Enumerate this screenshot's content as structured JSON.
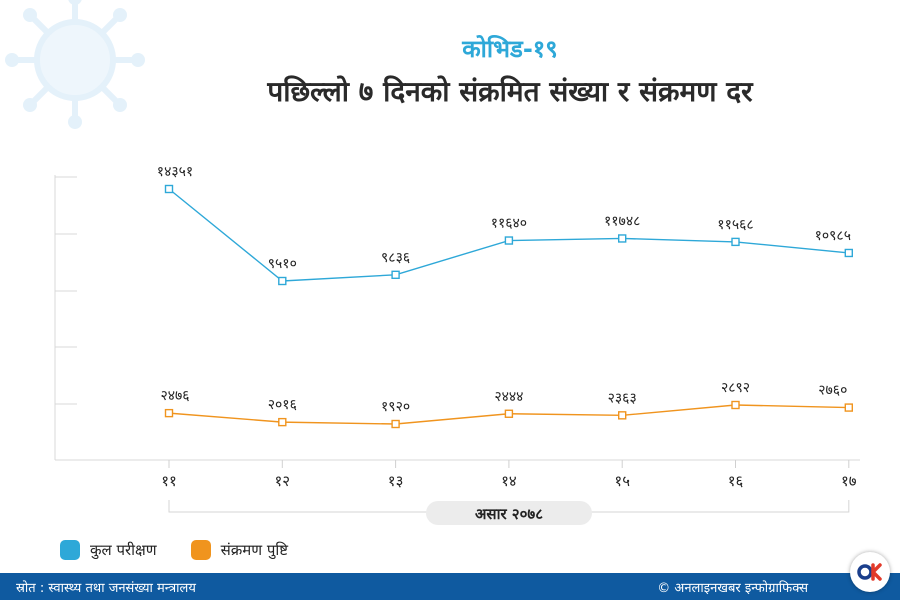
{
  "header": {
    "kicker": "कोभिड-१९",
    "title": "पछिल्लो ७ दिनको संक्रमित संख्या र संक्रमण दर"
  },
  "chart_data": {
    "type": "line",
    "categories": [
      "११",
      "१२",
      "१३",
      "१४",
      "१५",
      "१६",
      "१७"
    ],
    "xlabel": "असार २०७८",
    "ylabel": "",
    "grid": false,
    "legend_position": "bottom-left",
    "series": [
      {
        "name": "कुल परीक्षण",
        "color": "#2ea8d8",
        "values": [
          14351,
          9510,
          9836,
          11640,
          11748,
          11568,
          10985
        ],
        "labels": [
          "१४३५१",
          "९५१०",
          "९८३६",
          "११६४०",
          "११७४८",
          "११५६८",
          "१०९८५"
        ]
      },
      {
        "name": "संक्रमण पुष्टि",
        "color": "#f0941e",
        "values": [
          2476,
          2016,
          1920,
          2444,
          2363,
          2892,
          2760
        ],
        "labels": [
          "२४७६",
          "२०१६",
          "१९२०",
          "२४४४",
          "२३६३",
          "२८९२",
          "२७६०"
        ]
      }
    ]
  },
  "legend": {
    "items": [
      {
        "label": "कुल परीक्षण",
        "color": "#2ea8d8"
      },
      {
        "label": "संक्रमण पुष्टि",
        "color": "#f0941e"
      }
    ]
  },
  "footer": {
    "source": "स्रोत : स्वास्थ्य तथा जनसंख्या मन्त्रालय",
    "credit": "© अनलाइनखबर इन्फोग्राफिक्स"
  },
  "brand": {
    "logo_icon": "onlinekhabar-logo-icon",
    "accent": "#2ea8d8",
    "footer_bg": "#0f5aa0"
  }
}
